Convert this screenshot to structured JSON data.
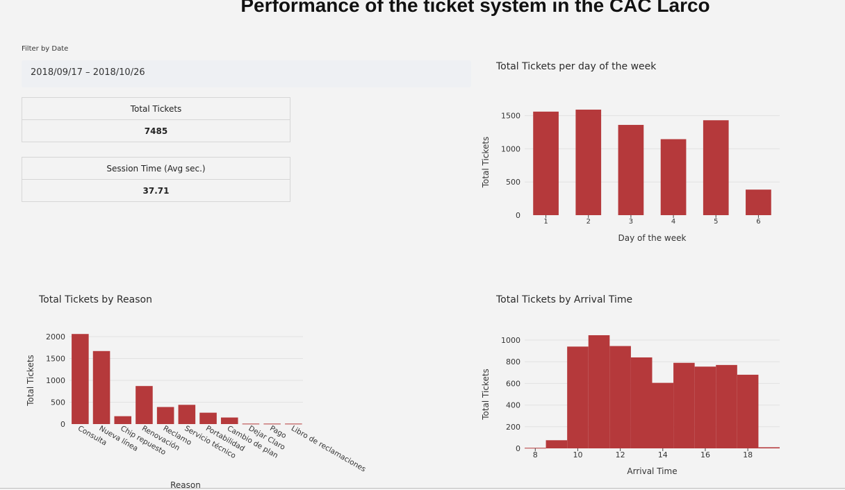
{
  "page": {
    "title": "Performance of the ticket system in the CAC Larco"
  },
  "filter": {
    "label": "Filter by Date",
    "date_range": "2018/09/17 – 2018/10/26"
  },
  "stats": {
    "total_tickets": {
      "header": "Total Tickets",
      "value": "7485"
    },
    "session_time": {
      "header": "Session Time (Avg sec.)",
      "value": "37.71"
    }
  },
  "colors": {
    "bar": "#b5393b",
    "grid": "#e2e2e2",
    "background": "#f3f3f3"
  },
  "chart_data": [
    {
      "id": "day_of_week",
      "type": "bar",
      "title": "Total Tickets per day of the week",
      "xlabel": "Day of the week",
      "ylabel": "Total Tickets",
      "categories": [
        "1",
        "2",
        "3",
        "4",
        "5",
        "6"
      ],
      "values": [
        1560,
        1590,
        1360,
        1145,
        1430,
        385
      ],
      "ylim": [
        0,
        1600
      ],
      "yticks": [
        0,
        500,
        1000,
        1500
      ]
    },
    {
      "id": "reason",
      "type": "bar",
      "title": "Total Tickets by Reason",
      "xlabel": "Reason",
      "ylabel": "Total Tickets",
      "categories": [
        "Consulta",
        "Nueva línea",
        "Chip repuesto",
        "Renovación",
        "Reclamo",
        "Servicio técnico",
        "Portabilidad",
        "Cambio de plan",
        "Dejar Claro",
        "Pago",
        "Libro de reclamaciones"
      ],
      "values": [
        2060,
        1670,
        180,
        870,
        390,
        440,
        260,
        150,
        10,
        10,
        10
      ],
      "ylim": [
        0,
        2000
      ],
      "yticks": [
        0,
        500,
        1000,
        1500,
        2000
      ]
    },
    {
      "id": "arrival_time",
      "type": "bar",
      "title": "Total Tickets by Arrival Time",
      "xlabel": "Arrival Time",
      "ylabel": "Total Tickets",
      "bins": [
        [
          7.5,
          8.5
        ],
        [
          8.5,
          9.5
        ],
        [
          9.5,
          10.5
        ],
        [
          10.5,
          11.5
        ],
        [
          11.5,
          12.5
        ],
        [
          12.5,
          13.5
        ],
        [
          13.5,
          14.5
        ],
        [
          14.5,
          15.5
        ],
        [
          15.5,
          16.5
        ],
        [
          16.5,
          17.5
        ],
        [
          17.5,
          18.5
        ],
        [
          18.5,
          19.5
        ]
      ],
      "values": [
        5,
        75,
        940,
        1045,
        945,
        840,
        605,
        790,
        755,
        770,
        680,
        10
      ],
      "xlim": [
        7.5,
        19.5
      ],
      "xticks": [
        8,
        10,
        12,
        14,
        16,
        18
      ],
      "ylim": [
        0,
        1000
      ],
      "yticks": [
        0,
        200,
        400,
        600,
        800,
        1000
      ]
    }
  ]
}
